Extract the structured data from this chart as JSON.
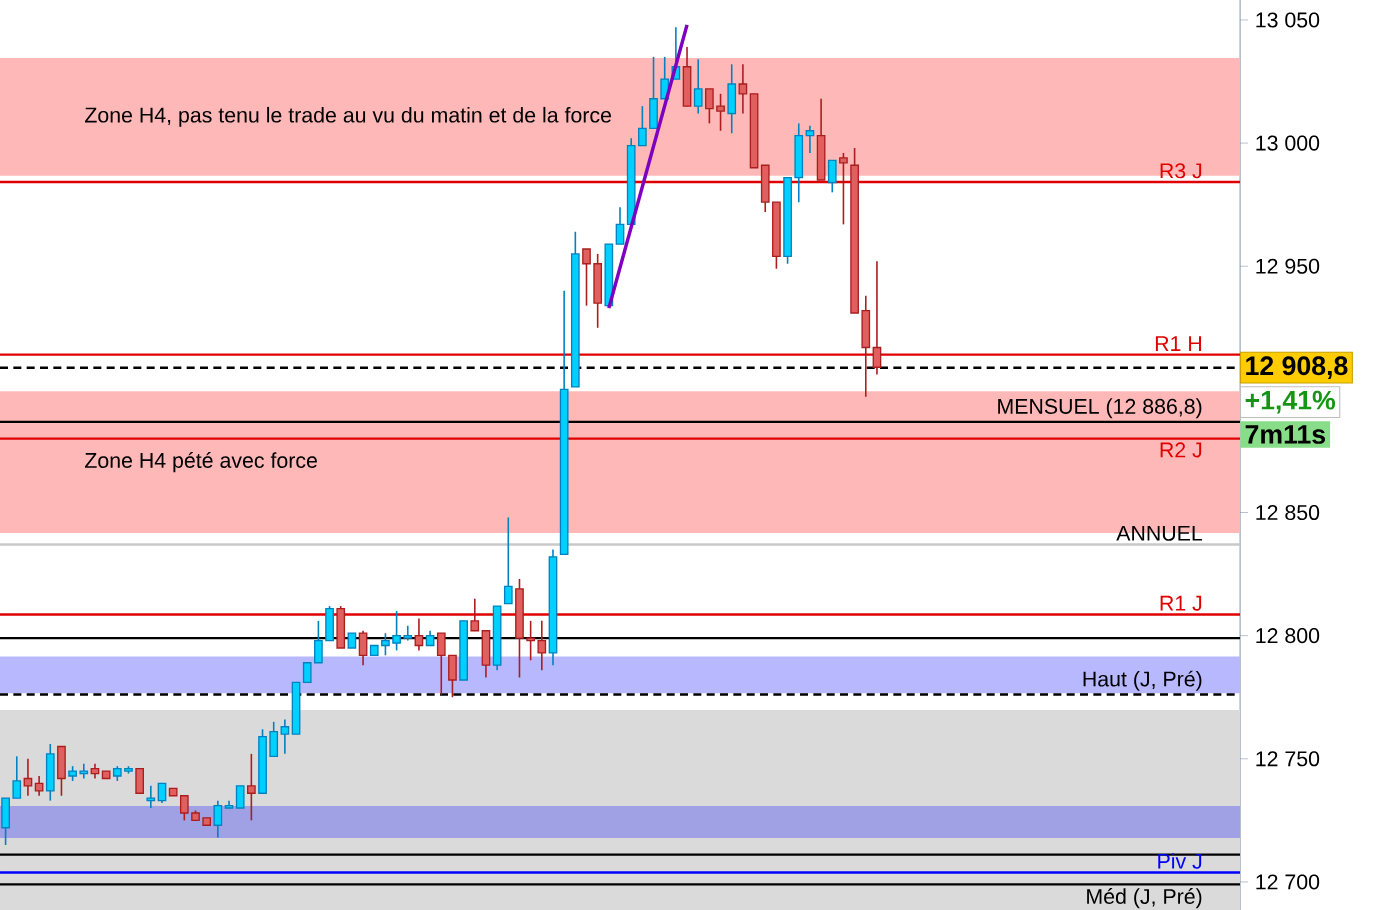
{
  "chart_data": {
    "type": "candlestick",
    "categories": [
      null,
      null,
      null,
      null,
      null,
      null,
      null,
      null,
      null,
      null,
      null,
      null,
      null,
      null,
      null,
      null,
      null,
      null,
      null,
      null,
      null,
      null,
      null,
      null,
      null,
      null,
      null,
      null,
      null,
      null,
      null,
      null,
      null,
      null,
      null,
      null,
      null,
      null,
      null,
      null,
      null,
      null,
      null,
      null,
      null,
      null,
      null,
      null,
      null,
      null,
      null,
      null,
      null,
      null,
      null,
      null,
      null,
      null,
      null,
      null,
      null,
      null,
      null,
      null,
      null,
      null,
      null,
      null,
      null,
      null,
      null,
      null,
      null,
      null,
      null,
      null,
      null,
      null,
      null,
      null,
      null,
      null,
      null,
      null,
      null,
      null,
      null,
      null,
      null,
      null,
      null,
      null,
      null,
      null,
      null,
      null,
      null,
      null,
      null,
      null,
      null,
      null,
      null,
      null,
      null,
      null,
      null,
      null,
      null,
      null,
      null
    ],
    "ohlc": [
      [
        12722,
        12734,
        12715,
        12734
      ],
      [
        12734,
        12751,
        12734,
        12741
      ],
      [
        12742,
        12750,
        12735,
        12739
      ],
      [
        12740,
        12743,
        12735,
        12737
      ],
      [
        12737,
        12756,
        12733,
        12752
      ],
      [
        12755,
        12755,
        12735,
        12742
      ],
      [
        12743,
        12747,
        12741,
        12745
      ],
      [
        12744,
        12748,
        12742,
        12745
      ],
      [
        12746,
        12748,
        12742,
        12744
      ],
      [
        12745,
        12745,
        12742,
        12742
      ],
      [
        12743,
        12747,
        12741,
        12746
      ],
      [
        12745,
        12747,
        12744,
        12746
      ],
      [
        12746,
        12746,
        12736,
        12736
      ],
      [
        12733,
        12739,
        12730,
        12734
      ],
      [
        12733,
        12740,
        12732,
        12740
      ],
      [
        12738,
        12738,
        12735,
        12735
      ],
      [
        12735,
        12735,
        12725,
        12728
      ],
      [
        12728,
        12729,
        12725,
        12725
      ],
      [
        12726,
        12726,
        12723,
        12723
      ],
      [
        12723,
        12733,
        12718,
        12731
      ],
      [
        12730,
        12733,
        12730,
        12731
      ],
      [
        12730,
        12739,
        12730,
        12739
      ],
      [
        12739,
        12752,
        12725,
        12736
      ],
      [
        12736,
        12762,
        12736,
        12759
      ],
      [
        12751,
        12765,
        12751,
        12761
      ],
      [
        12760,
        12766,
        12752,
        12763
      ],
      [
        12760,
        12781,
        12760,
        12781
      ],
      [
        12781,
        12789,
        12781,
        12789
      ],
      [
        12789,
        12806,
        12789,
        12798
      ],
      [
        12798,
        12812,
        12798,
        12811
      ],
      [
        12811,
        12812,
        12795,
        12795
      ],
      [
        12795,
        12801,
        12795,
        12801
      ],
      [
        12801,
        12802,
        12788,
        12792
      ],
      [
        12792,
        12796,
        12792,
        12796
      ],
      [
        12796,
        12801,
        12792,
        12798
      ],
      [
        12797,
        12810,
        12794,
        12800
      ],
      [
        12799,
        12804,
        12798,
        12800
      ],
      [
        12800,
        12807,
        12794,
        12796
      ],
      [
        12796,
        12802,
        12796,
        12800
      ],
      [
        12801,
        12801,
        12776,
        12792
      ],
      [
        12792,
        12792,
        12775,
        12782
      ],
      [
        12782,
        12806,
        12782,
        12806
      ],
      [
        12806,
        12815,
        12802,
        12802
      ],
      [
        12802,
        12802,
        12783,
        12788
      ],
      [
        12788,
        12812,
        12786,
        12812
      ],
      [
        12813,
        12848,
        12813,
        12820
      ],
      [
        12819,
        12823,
        12783,
        12799
      ],
      [
        12799,
        12806,
        12790,
        12798
      ],
      [
        12798,
        12806,
        12786,
        12793
      ],
      [
        12793,
        12835,
        12788,
        12832
      ],
      [
        12833,
        12940,
        12833,
        12900
      ],
      [
        12901,
        12964,
        12901,
        12955
      ],
      [
        12957,
        12957,
        12934,
        12951
      ],
      [
        12951,
        12955,
        12925,
        12935
      ],
      [
        12934,
        12959,
        12934,
        12959
      ],
      [
        12959,
        12974,
        12959,
        12967
      ],
      [
        12967,
        13002,
        12967,
        12999
      ],
      [
        12999,
        13015,
        12999,
        13006
      ],
      [
        13006,
        13035,
        13006,
        13018
      ],
      [
        13018,
        13035,
        13018,
        13026
      ],
      [
        13026,
        13047,
        13026,
        13031
      ],
      [
        13031,
        13039,
        13015,
        13015
      ],
      [
        13015,
        13034,
        13012,
        13022
      ],
      [
        13022,
        13022,
        13008,
        13014
      ],
      [
        13015,
        13020,
        13005,
        13013
      ],
      [
        13012,
        13032,
        13004,
        13024
      ],
      [
        13024,
        13032,
        13012,
        13020
      ],
      [
        13020,
        13020,
        12990,
        12990
      ],
      [
        12991,
        12991,
        12972,
        12976
      ],
      [
        12976,
        12976,
        12949,
        12954
      ],
      [
        12954,
        12986,
        12951,
        12986
      ],
      [
        12986,
        13008,
        12976,
        13003
      ],
      [
        13003,
        13007,
        12996,
        13005
      ],
      [
        13003,
        13018,
        12985,
        12985
      ],
      [
        12984,
        12993,
        12980,
        12993
      ],
      [
        12994,
        12996,
        12967,
        12992
      ],
      [
        12991,
        12998,
        12931,
        12931
      ],
      [
        12932,
        12938,
        12897,
        12917
      ],
      [
        12917,
        12952,
        12906,
        12909
      ],
      null,
      null,
      null,
      null,
      null,
      null,
      null,
      null,
      null,
      null,
      null,
      null,
      null,
      null,
      null,
      null,
      null,
      null,
      null,
      null,
      null,
      null,
      null,
      null,
      null,
      null,
      null,
      null,
      null,
      null,
      null,
      null
    ],
    "series": [
      {
        "type": "line",
        "color": "#8000c0",
        "values": [
          null,
          null,
          null,
          null,
          null,
          null,
          null,
          null,
          null,
          null,
          null,
          null,
          null,
          null,
          null,
          null,
          null,
          null,
          null,
          null,
          null,
          null,
          null,
          null,
          null,
          null,
          null,
          null,
          null,
          null,
          null,
          null,
          null,
          null,
          null,
          null,
          null,
          null,
          null,
          null,
          null,
          null,
          null,
          null,
          null,
          null,
          null,
          null,
          null,
          null,
          null,
          null,
          null,
          null,
          12933,
          null,
          null,
          null,
          null,
          null,
          null,
          13048,
          null,
          null,
          null,
          null,
          null,
          null,
          null,
          null,
          null,
          null,
          null,
          null,
          null,
          null,
          null,
          null,
          null,
          null,
          null,
          null,
          null,
          null,
          null,
          null,
          null,
          null,
          null,
          null,
          null,
          null,
          null,
          null,
          null,
          null,
          null,
          null,
          null,
          null,
          null,
          null,
          null,
          null,
          null,
          null,
          null,
          null,
          null,
          null,
          null
        ]
      }
    ],
    "ylim": [
      12688.6,
      13058.1
    ],
    "yticks": [
      {
        "value": 12700,
        "label": "12 700"
      },
      {
        "value": 12750,
        "label": "12 750"
      },
      {
        "value": 12800,
        "label": "12 800"
      },
      {
        "value": 12850,
        "label": "12 850"
      },
      {
        "value": 12900,
        "label": null
      },
      {
        "value": 12950,
        "label": "12 950"
      },
      {
        "value": 13000,
        "label": "13 000"
      },
      {
        "value": 13050,
        "label": "13 050"
      }
    ],
    "tick_labels": "y",
    "bands": [
      {
        "axis": "y",
        "from": 12986.7,
        "to": 13034.6,
        "label": "Zone H4, pas tenu le trade au vu du matin et de la force",
        "color": "#ffb8b8"
      },
      {
        "axis": "y",
        "from": 12841.7,
        "to": 12899.2,
        "label": "Zone H4 pété avec force",
        "color": "#ffb8b8"
      },
      {
        "axis": "y",
        "from": 12688.6,
        "to": 12769.8,
        "color": "#dadada"
      },
      {
        "axis": "y",
        "from": 12776.6,
        "to": 12791.5,
        "color": "#b8b8ff"
      },
      {
        "axis": "y",
        "from": 12717.8,
        "to": 12730.8,
        "color": "#a0a0e4"
      }
    ],
    "ref_lines": [
      {
        "axis": "y",
        "value": 12984.2,
        "label": "R3 J",
        "color": "#e00000"
      },
      {
        "axis": "y",
        "value": 12914.1,
        "label": "R1 H",
        "color": "#e00000"
      },
      {
        "axis": "y",
        "value": 12908.8,
        "color": "#000000",
        "line_style": "dashed"
      },
      {
        "axis": "y",
        "value": 12886.8,
        "label": "MENSUEL (12 886,8)",
        "color": "#000000"
      },
      {
        "axis": "y",
        "value": 12880,
        "label": "R2 J",
        "color": "#e00000"
      },
      {
        "axis": "y",
        "value": 12837,
        "label": "ANNUEL",
        "color": "#c8c8c8"
      },
      {
        "axis": "y",
        "value": 12808.6,
        "label": "R1 J",
        "color": "#e00000"
      },
      {
        "axis": "y",
        "value": 12799,
        "color": "#000000"
      },
      {
        "axis": "y",
        "value": 12776.1,
        "label": "Haut (J, Pré)",
        "color": "#000000",
        "line_style": "dashed"
      },
      {
        "axis": "y",
        "value": 12711.1,
        "color": "#000000"
      },
      {
        "axis": "y",
        "value": 12703.8,
        "label": "Piv J",
        "color": "#0000ff"
      },
      {
        "axis": "y",
        "value": 12699,
        "label": "Méd (J, Pré)",
        "color": "#000000"
      }
    ],
    "annotations": [
      "12 908,8",
      "+1,41%",
      "7m11s"
    ]
  }
}
